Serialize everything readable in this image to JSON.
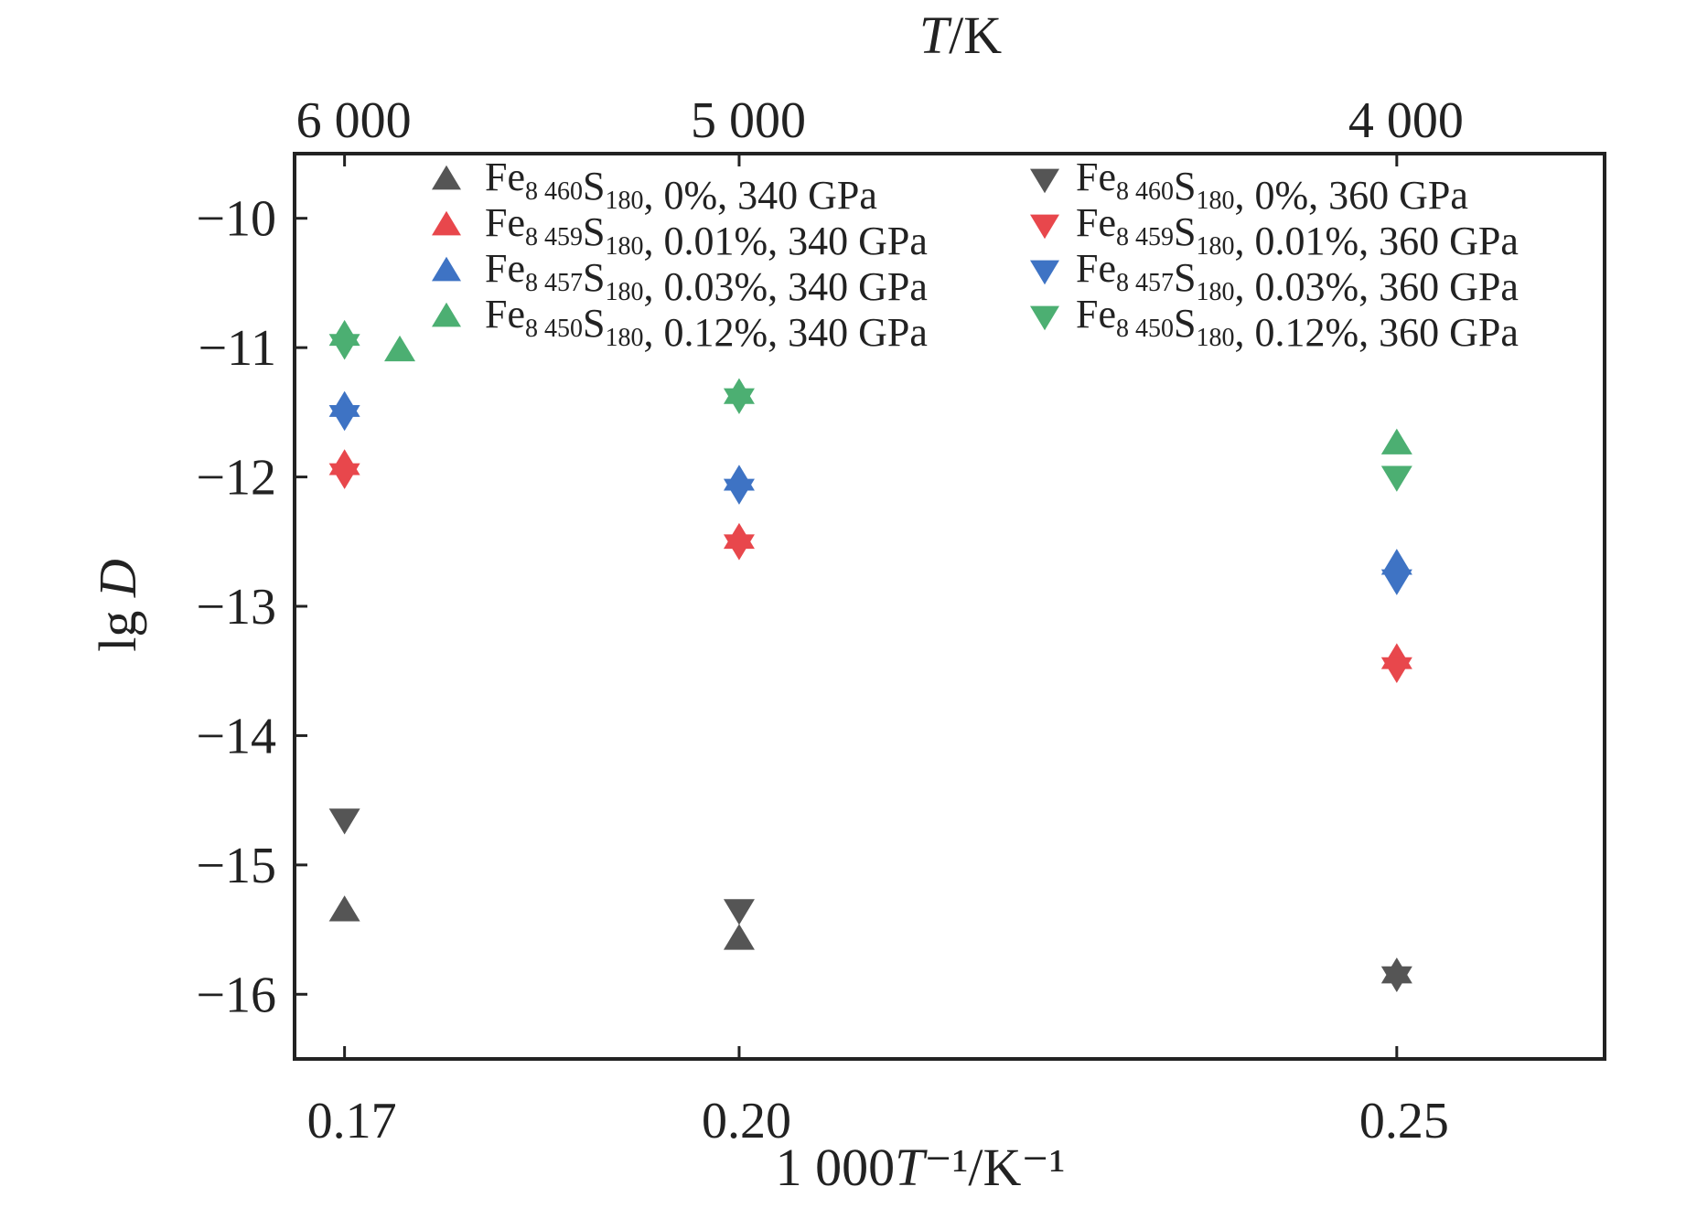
{
  "chart_data": {
    "type": "scatter",
    "title": "",
    "xlabel": "1 000T⁻¹/K⁻¹",
    "ylabel": "lg D",
    "top_xlabel": "T/K",
    "xlim": [
      0.1662,
      0.2658
    ],
    "ylim": [
      -16.5,
      -9.5
    ],
    "x_ticks": [
      0.17,
      0.2,
      0.25
    ],
    "x_tick_labels": [
      "0.17",
      "0.20",
      "0.25"
    ],
    "y_ticks": [
      -10,
      -11,
      -12,
      -13,
      -14,
      -15,
      -16
    ],
    "y_tick_labels": [
      "−10",
      "−11",
      "−12",
      "−13",
      "−14",
      "−15",
      "−16"
    ],
    "top_ticks": [
      6000,
      5000,
      4000
    ],
    "top_tick_labels": [
      "6 000",
      "5 000",
      "4 000"
    ],
    "grid": false,
    "legend_position": "top",
    "x": [
      0.17,
      0.2,
      0.25
    ],
    "series": [
      {
        "name": "Fe8 460S180, 0%, 340 GPa",
        "marker": "triangle-up",
        "color": "#555555",
        "x": [
          0.17,
          0.2,
          0.25
        ],
        "values": [
          -15.35,
          -15.57,
          -15.83
        ],
        "label": {
          "element": "Fe",
          "sub1": "8 460",
          "element2": "S",
          "sub2": "180",
          "rest": ", 0%, 340 GPa"
        }
      },
      {
        "name": "Fe8 459S180, 0.01%, 340 GPa",
        "marker": "triangle-up",
        "color": "#E8474C",
        "x": [
          0.17,
          0.2,
          0.25
        ],
        "values": [
          -11.9,
          -12.47,
          -13.4
        ],
        "label": {
          "element": "Fe",
          "sub1": "8 459",
          "element2": "S",
          "sub2": "180",
          "rest": ", 0.01%, 340 GPa"
        }
      },
      {
        "name": "Fe8 457S180, 0.03%, 340 GPa",
        "marker": "triangle-up",
        "color": "#3E73C4",
        "x": [
          0.17,
          0.2,
          0.25
        ],
        "values": [
          -11.45,
          -12.02,
          -12.67
        ],
        "label": {
          "element": "Fe",
          "sub1": "8 457",
          "element2": "S",
          "sub2": "180",
          "rest": ", 0.03%, 340 GPa"
        }
      },
      {
        "name": "Fe8 450S180, 0.12%, 340 GPa",
        "marker": "triangle-up",
        "color": "#4CAF72",
        "x": [
          0.17,
          0.2,
          0.25
        ],
        "values": [
          -10.9,
          -11.35,
          -11.74
        ],
        "label": {
          "element": "Fe",
          "sub1": "8 450",
          "element2": "S",
          "sub2": "180",
          "rest": ", 0.12%, 340 GPa"
        }
      },
      {
        "name": "Fe8 460S180, 0%, 360 GPa",
        "marker": "triangle-down",
        "color": "#555555",
        "x": [
          0.17,
          0.2,
          0.25
        ],
        "values": [
          -14.65,
          -15.35,
          -15.87
        ],
        "label": {
          "element": "Fe",
          "sub1": "8 460",
          "element2": "S",
          "sub2": "180",
          "rest": ", 0%, 360 GPa"
        }
      },
      {
        "name": "Fe8 459S180, 0.01%, 360 GPa",
        "marker": "triangle-down",
        "color": "#E8474C",
        "x": [
          0.17,
          0.2,
          0.25
        ],
        "values": [
          -11.98,
          -12.53,
          -13.48
        ],
        "label": {
          "element": "Fe",
          "sub1": "8 459",
          "element2": "S",
          "sub2": "180",
          "rest": ", 0.01%, 360 GPa"
        }
      },
      {
        "name": "Fe8 457S180, 0.03%, 360 GPa",
        "marker": "triangle-down",
        "color": "#3E73C4",
        "x": [
          0.17,
          0.2,
          0.25
        ],
        "values": [
          -11.53,
          -12.1,
          -12.8
        ],
        "label": {
          "element": "Fe",
          "sub1": "8 457",
          "element2": "S",
          "sub2": "180",
          "rest": ", 0.03%, 360 GPa"
        }
      },
      {
        "name": "Fe8 450S180, 0.12%, 360 GPa",
        "marker": "triangle-down",
        "color": "#4CAF72",
        "x": [
          0.17,
          0.2,
          0.25
        ],
        "values": [
          -10.98,
          -11.4,
          -12.0
        ],
        "label": {
          "element": "Fe",
          "sub1": "8 450",
          "element2": "S",
          "sub2": "180",
          "rest": ", 0.12%, 360 GPa"
        }
      }
    ],
    "extra_points": [
      {
        "series_index": 3,
        "x": 0.1742,
        "value": -11.02
      }
    ]
  }
}
